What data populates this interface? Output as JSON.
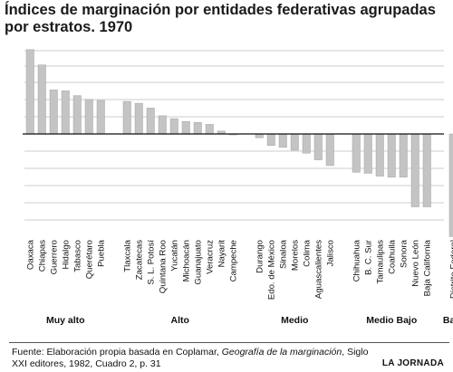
{
  "title": "Índices de marginación por entidades federativas agrupadas por estratos. 1970",
  "chart_data": {
    "type": "bar",
    "title": "Índices de marginación por entidades federativas agrupadas por estratos. 1970",
    "xlabel": "",
    "ylabel": "",
    "ylim": [
      -1.1,
      0.9
    ],
    "grid": true,
    "bar_color": "#c4c4c4",
    "categories": [
      "Oaxaca",
      "Chiapas",
      "Guerrero",
      "Hidalgo",
      "Tabasco",
      "Querétaro",
      "Puebla",
      "Tlaxcala",
      "Zacatecas",
      "S. L. Potosí",
      "Quintana Roo",
      "Yucatán",
      "Michoacán",
      "Guanajuato",
      "Veracruz",
      "Nayarit",
      "Campeche",
      "Durango",
      "Edo. de México",
      "Sinaloa",
      "Morelos",
      "Colima",
      "Aguascalientes",
      "Jalisco",
      "Chihuahua",
      "B. C. Sur",
      "Tamaulipas",
      "Coahuila",
      "Sonora",
      "Nuevo León",
      "Baja California",
      "Distrito Federal"
    ],
    "values": [
      0.88,
      0.72,
      0.46,
      0.45,
      0.4,
      0.36,
      0.35,
      0.34,
      0.32,
      0.27,
      0.19,
      0.16,
      0.13,
      0.12,
      0.1,
      0.03,
      -0.01,
      -0.04,
      -0.12,
      -0.14,
      -0.17,
      -0.2,
      -0.27,
      -0.33,
      -0.4,
      -0.41,
      -0.44,
      -0.45,
      -0.45,
      -0.76,
      -0.76,
      -1.07
    ],
    "groups": [
      {
        "name": "Muy alto",
        "start": 0,
        "end": 6
      },
      {
        "name": "Alto",
        "start": 7,
        "end": 16
      },
      {
        "name": "Medio",
        "start": 17,
        "end": 23
      },
      {
        "name": "Medio Bajo",
        "start": 24,
        "end": 30
      },
      {
        "name": "Bajo",
        "start": 31,
        "end": 31
      }
    ]
  },
  "footer": {
    "source_prefix": "Fuente: Elaboración propia basada en Coplamar, ",
    "source_title": "Geografía de la marginación",
    "source_suffix": ", Siglo XXI editores, 1982, Cuadro 2, p. 31",
    "credit": "LA JORNADA"
  }
}
